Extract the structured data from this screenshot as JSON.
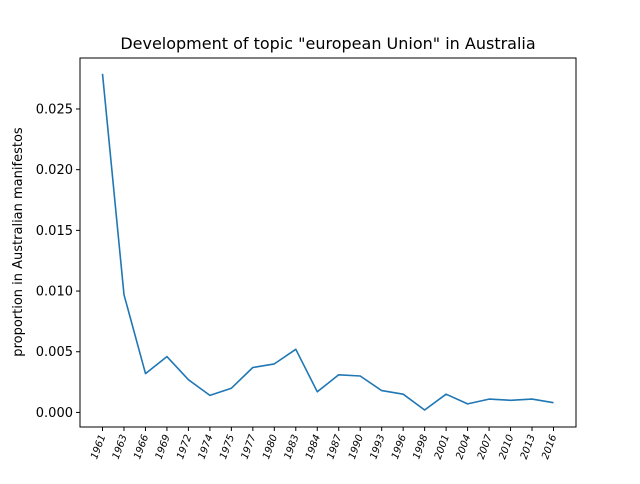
{
  "chart_data": {
    "type": "line",
    "title": "Development of topic \"european Union\" in Australia",
    "xlabel": "",
    "ylabel": "proportion in Australian manifestos",
    "categories": [
      "1961",
      "1963",
      "1966",
      "1969",
      "1972",
      "1974",
      "1975",
      "1977",
      "1980",
      "1983",
      "1984",
      "1987",
      "1990",
      "1993",
      "1996",
      "1998",
      "2001",
      "2004",
      "2007",
      "2010",
      "2013",
      "2016"
    ],
    "series": [
      {
        "values": [
          0.0279,
          0.0097,
          0.0032,
          0.0046,
          0.0027,
          0.0014,
          0.002,
          0.0037,
          0.004,
          0.0052,
          0.0017,
          0.0031,
          0.003,
          0.0018,
          0.0015,
          0.0002,
          0.0015,
          0.0007,
          0.0011,
          0.001,
          0.0011,
          0.0008
        ],
        "color": "#1f77b4"
      }
    ],
    "yticks": [
      "0.000",
      "0.005",
      "0.010",
      "0.015",
      "0.020",
      "0.025"
    ],
    "ytick_values": [
      0,
      0.005,
      0.01,
      0.015,
      0.02,
      0.025
    ],
    "ylim": [
      -0.0012,
      0.0292
    ],
    "grid": false,
    "legend": "none"
  }
}
